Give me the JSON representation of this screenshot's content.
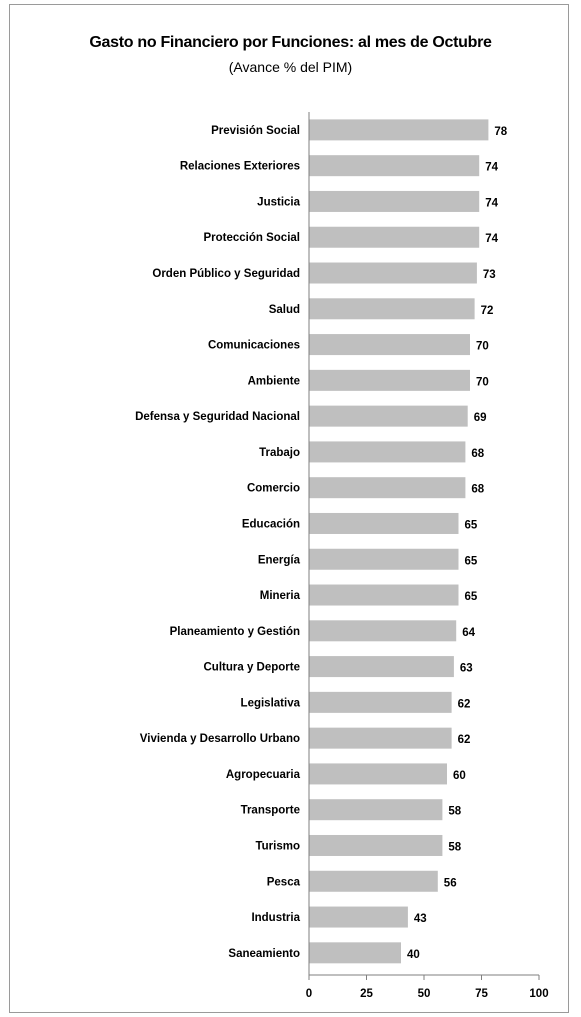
{
  "chart_data": {
    "type": "bar",
    "orientation": "horizontal",
    "title": "Gasto no Financiero por Funciones: al mes de Octubre",
    "subtitle": "(Avance % del PIM)",
    "xlabel": "",
    "ylabel": "",
    "xlim": [
      0,
      100
    ],
    "xticks": [
      0,
      25,
      50,
      75,
      100
    ],
    "grid": false,
    "legend": "none",
    "bar_color": "#bfbfbf",
    "categories": [
      "Previsión Social",
      "Relaciones Exteriores",
      "Justicia",
      "Protección Social",
      "Orden Público y Seguridad",
      "Salud",
      "Comunicaciones",
      "Ambiente",
      "Defensa y Seguridad Nacional",
      "Trabajo",
      "Comercio",
      "Educación",
      "Energía",
      "Mineria",
      "Planeamiento y  Gestión",
      "Cultura y Deporte",
      "Legislativa",
      "Vivienda y Desarrollo Urbano",
      "Agropecuaria",
      "Transporte",
      "Turismo",
      "Pesca",
      "Industria",
      "Saneamiento"
    ],
    "values": [
      78,
      74,
      74,
      74,
      73,
      72,
      70,
      70,
      69,
      68,
      68,
      65,
      65,
      65,
      64,
      63,
      62,
      62,
      60,
      58,
      58,
      56,
      43,
      40
    ]
  }
}
